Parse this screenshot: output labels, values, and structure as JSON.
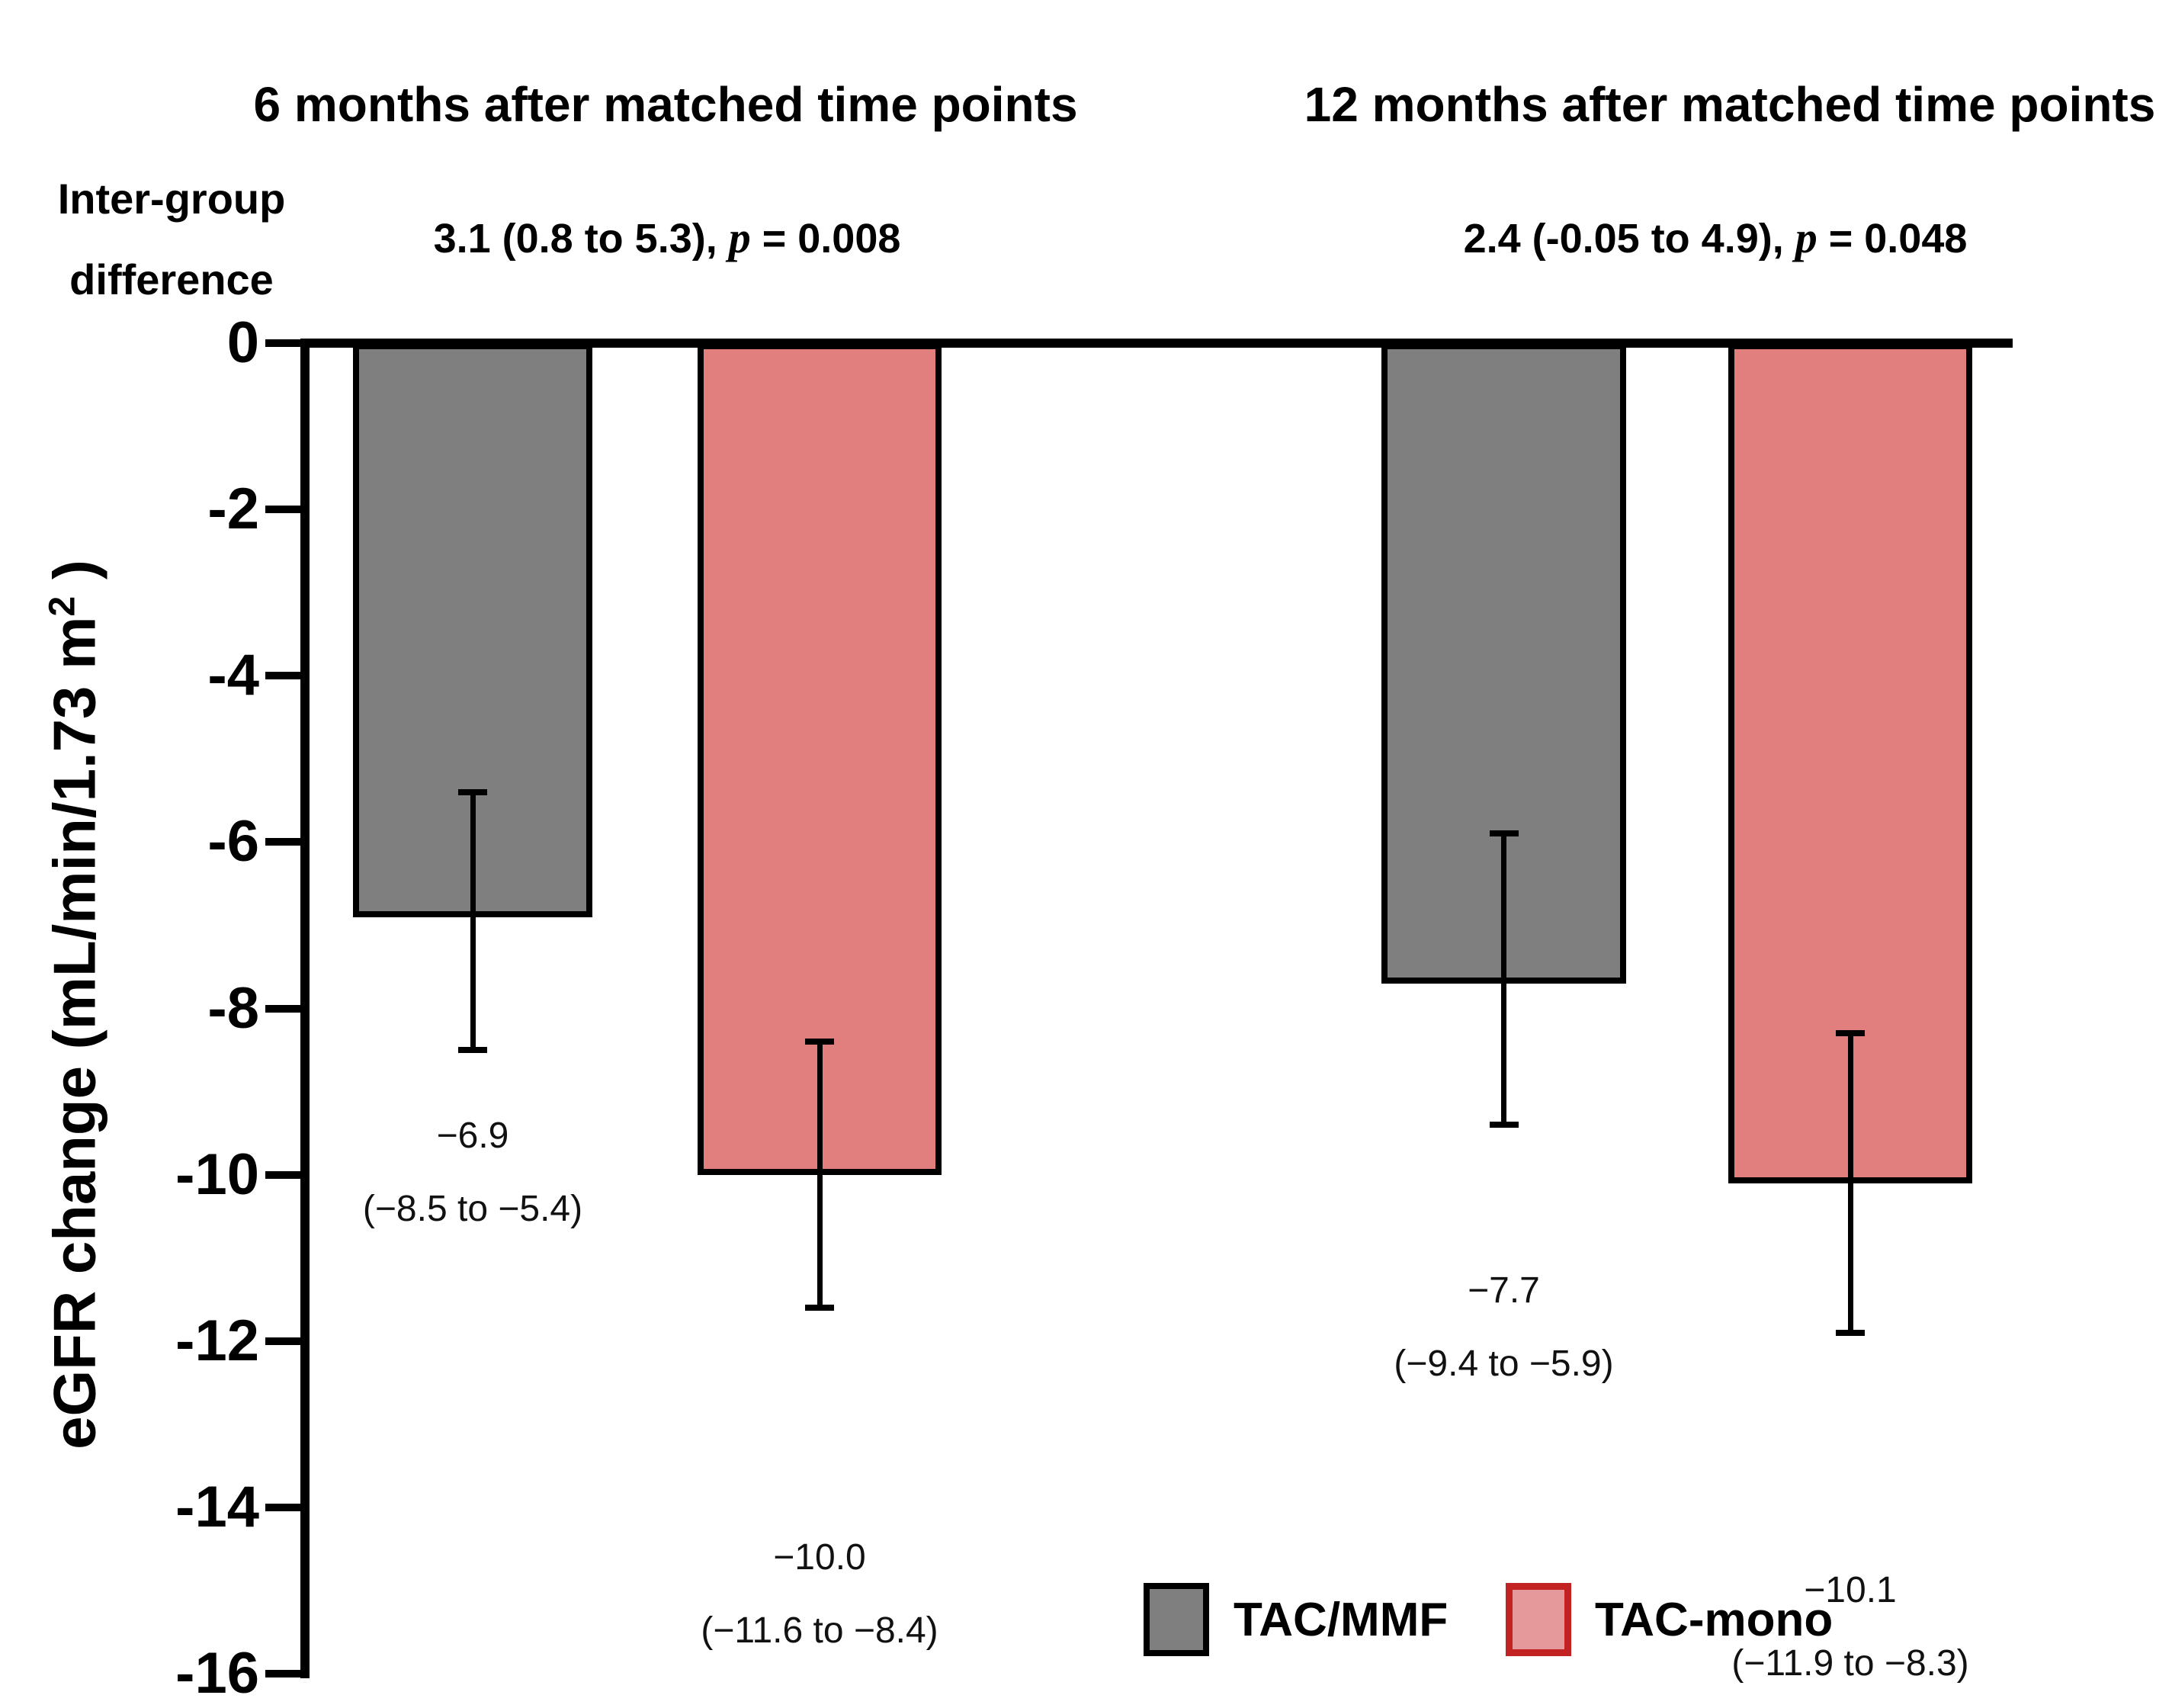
{
  "titles": {
    "left": "6 months after matched time points",
    "right": "12 months after matched time points"
  },
  "intergroup": {
    "label_line1": "Inter-group",
    "label_line2": "difference",
    "left": {
      "prefix": "3.1 (0.8 to 5.3), ",
      "p": "p",
      "suffix": " = 0.008"
    },
    "right": {
      "prefix": "2.4 (-0.05 to 4.9), ",
      "p": "p",
      "suffix": " = 0.048"
    }
  },
  "chart_data": {
    "type": "bar",
    "ylabel": "eGFR change (mL/min/1.73 m² )",
    "ylabel_parts": {
      "main": "eGFR change (mL/min/1.73 m",
      "sup": "2",
      "end": " )"
    },
    "ylim": [
      -16,
      0
    ],
    "ytick_step": 2,
    "ytick_labels": [
      "0",
      "-2",
      "-4",
      "-6",
      "-8",
      "-10",
      "-12",
      "-14",
      "-16"
    ],
    "grid": false,
    "groups": [
      "6 months after matched time points",
      "12 months after matched time points"
    ],
    "series": [
      {
        "name": "TAC/MMF",
        "color": "#7f7f7f",
        "border": "#000000",
        "values": [
          -6.9,
          -7.7
        ]
      },
      {
        "name": "TAC-mono",
        "color": "#e17e7e",
        "border": "#000000",
        "values": [
          -10.0,
          -10.1
        ]
      }
    ],
    "bars": [
      {
        "group": "6 months after matched time points",
        "series": "TAC/MMF",
        "value": -6.9,
        "ci_low": -8.5,
        "ci_high": -5.4,
        "label_line1": "−6.9",
        "label_line2": "(−8.5 to −5.4)"
      },
      {
        "group": "6 months after matched time points",
        "series": "TAC-mono",
        "value": -10.0,
        "ci_low": -11.6,
        "ci_high": -8.4,
        "label_line1": "−10.0",
        "label_line2": "(−11.6 to −8.4)"
      },
      {
        "group": "12 months after matched time points",
        "series": "TAC/MMF",
        "value": -7.7,
        "ci_low": -9.4,
        "ci_high": -5.9,
        "label_line1": "−7.7",
        "label_line2": "(−9.4 to −5.9)"
      },
      {
        "group": "12 months after matched time points",
        "series": "TAC-mono",
        "value": -10.1,
        "ci_low": -11.9,
        "ci_high": -8.3,
        "label_line1": "−10.1",
        "label_line2": "(−11.9 to −8.3)"
      }
    ],
    "legend_position": "bottom-right"
  },
  "legend": [
    {
      "label": "TAC/MMF",
      "fill": "#7f7f7f",
      "border": "#000000"
    },
    {
      "label": "TAC-mono",
      "fill": "#e5999b",
      "border": "#c32222"
    }
  ],
  "colors": {
    "axis": "#000000",
    "background": "#ffffff",
    "gray_bar": "#7f7f7f",
    "pink_bar": "#e17e7e",
    "legend_red_border": "#c32222"
  }
}
